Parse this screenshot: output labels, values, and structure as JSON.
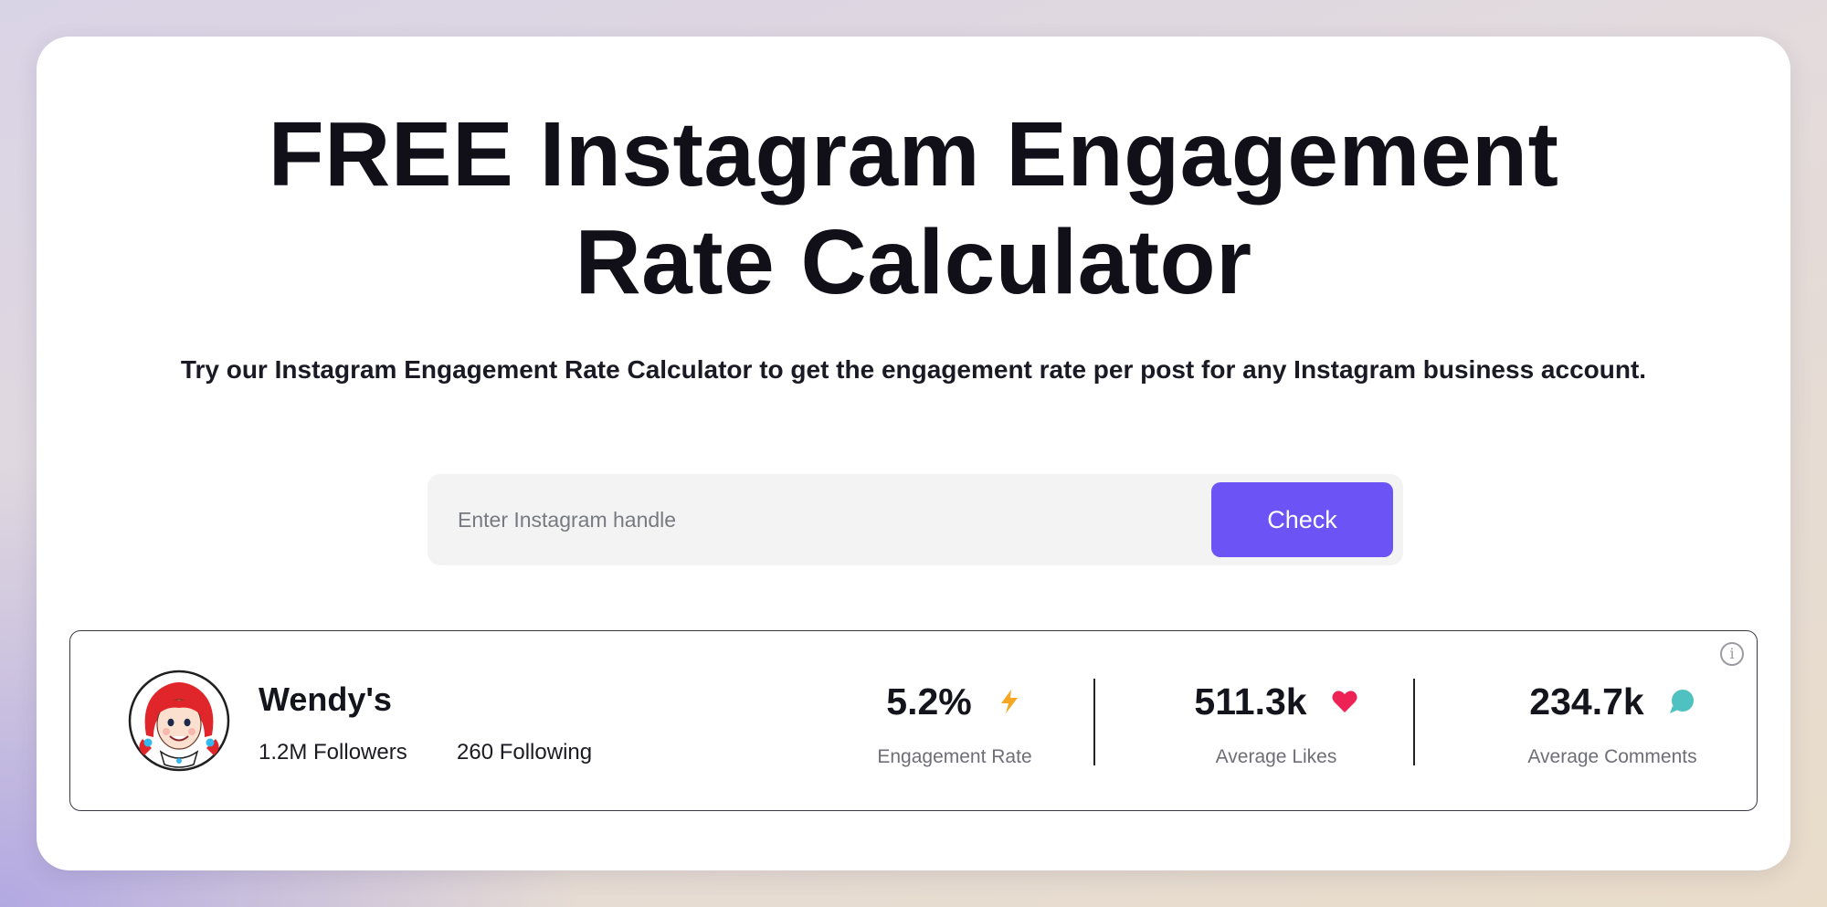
{
  "page": {
    "title_line1": "FREE Instagram Engagement",
    "title_line2": "Rate Calculator",
    "subtitle": "Try our Instagram Engagement Rate Calculator to get the engagement rate per post for any Instagram business account."
  },
  "search": {
    "placeholder": "Enter Instagram handle",
    "value": "",
    "button_label": "Check"
  },
  "result": {
    "account_name": "Wendy's",
    "followers": "1.2M Followers",
    "following": "260 Following",
    "stats": [
      {
        "value": "5.2%",
        "label": "Engagement Rate",
        "icon": "lightning-bolt-icon",
        "icon_color": "#f5a623"
      },
      {
        "value": "511.3k",
        "label": "Average Likes",
        "icon": "heart-icon",
        "icon_color": "#ee2255"
      },
      {
        "value": "234.7k",
        "label": "Average Comments",
        "icon": "chat-bubble-icon",
        "icon_color": "#4fc1c0"
      }
    ]
  },
  "colors": {
    "accent": "#6b53f6",
    "title_text": "#111019"
  }
}
